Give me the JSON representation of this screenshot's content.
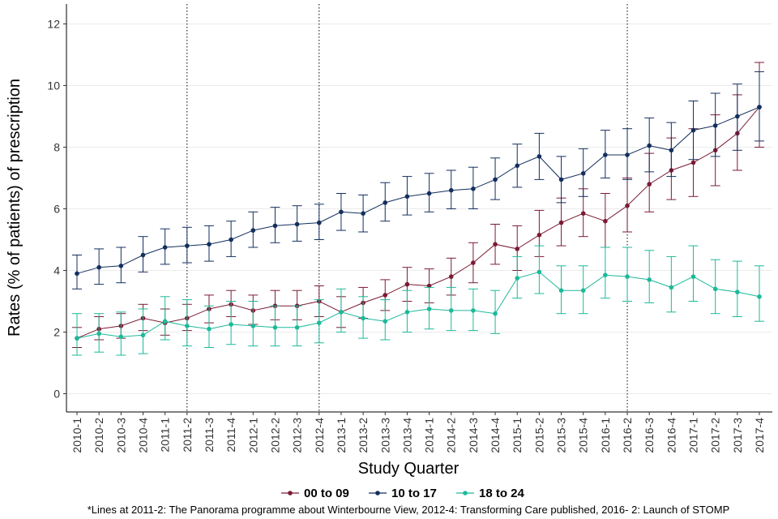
{
  "chart_data": {
    "type": "line",
    "xlabel": "Study Quarter",
    "ylabel": "Rates (% of patients) of prescription",
    "ylim": [
      -0.6,
      12.6
    ],
    "yticks": [
      0,
      2,
      4,
      6,
      8,
      10,
      12
    ],
    "grid": "horizontal",
    "legend_position": "bottom",
    "categories": [
      "2010-1",
      "2010-2",
      "2010-3",
      "2010-4",
      "2011-1",
      "2011-2",
      "2011-3",
      "2011-4",
      "2012-1",
      "2012-2",
      "2012-3",
      "2012-4",
      "2013-1",
      "2013-2",
      "2013-3",
      "2013-4",
      "2014-1",
      "2014-2",
      "2014-3",
      "2014-4",
      "2015-1",
      "2015-2",
      "2015-3",
      "2015-4",
      "2016-1",
      "2016-2",
      "2016-3",
      "2016-4",
      "2017-1",
      "2017-2",
      "2017-3",
      "2017-4"
    ],
    "vlines": [
      "2011-2",
      "2012-4",
      "2016-2"
    ],
    "series": [
      {
        "name": "00 to 09",
        "color": "#7b1b34",
        "values": [
          1.8,
          2.1,
          2.2,
          2.45,
          2.3,
          2.45,
          2.75,
          2.9,
          2.7,
          2.85,
          2.85,
          3.0,
          2.65,
          2.95,
          3.2,
          3.55,
          3.5,
          3.8,
          4.25,
          4.85,
          4.7,
          5.15,
          5.55,
          5.85,
          5.6,
          6.1,
          6.8,
          7.25,
          7.5,
          7.9,
          8.45,
          9.3
        ],
        "lower": [
          1.5,
          1.75,
          1.8,
          2.05,
          1.9,
          2.05,
          2.3,
          2.5,
          2.25,
          2.4,
          2.4,
          2.5,
          2.15,
          2.45,
          2.7,
          3.0,
          2.95,
          3.2,
          3.6,
          4.2,
          4.0,
          4.45,
          4.8,
          5.1,
          4.75,
          5.25,
          5.9,
          6.3,
          6.4,
          6.75,
          7.25,
          8.0
        ],
        "upper": [
          2.15,
          2.5,
          2.6,
          2.9,
          2.75,
          2.9,
          3.2,
          3.35,
          3.2,
          3.35,
          3.35,
          3.5,
          3.15,
          3.45,
          3.7,
          4.1,
          4.05,
          4.4,
          4.9,
          5.5,
          5.45,
          5.95,
          6.35,
          6.65,
          6.5,
          7.0,
          7.8,
          8.3,
          8.6,
          9.05,
          9.7,
          10.75
        ]
      },
      {
        "name": "10 to 17",
        "color": "#132f5e",
        "values": [
          3.9,
          4.1,
          4.15,
          4.5,
          4.75,
          4.8,
          4.85,
          5.0,
          5.3,
          5.45,
          5.5,
          5.55,
          5.9,
          5.85,
          6.2,
          6.4,
          6.5,
          6.6,
          6.65,
          6.95,
          7.4,
          7.7,
          6.95,
          7.15,
          7.75,
          7.75,
          8.05,
          7.9,
          8.55,
          8.7,
          9.0,
          9.3
        ],
        "lower": [
          3.4,
          3.55,
          3.6,
          3.95,
          4.2,
          4.25,
          4.3,
          4.45,
          4.75,
          4.9,
          4.95,
          5.0,
          5.3,
          5.25,
          5.6,
          5.8,
          5.9,
          6.0,
          6.0,
          6.3,
          6.7,
          6.95,
          6.2,
          6.4,
          7.0,
          6.95,
          7.2,
          7.05,
          7.6,
          7.7,
          7.9,
          8.2
        ],
        "upper": [
          4.5,
          4.7,
          4.75,
          5.1,
          5.35,
          5.4,
          5.45,
          5.6,
          5.9,
          6.05,
          6.1,
          6.15,
          6.5,
          6.45,
          6.85,
          7.05,
          7.15,
          7.25,
          7.35,
          7.65,
          8.1,
          8.45,
          7.7,
          7.95,
          8.55,
          8.6,
          8.95,
          8.8,
          9.5,
          9.75,
          10.05,
          10.45
        ]
      },
      {
        "name": "18 to 24",
        "color": "#1db99a",
        "values": [
          1.8,
          1.95,
          1.85,
          1.9,
          2.35,
          2.2,
          2.1,
          2.25,
          2.2,
          2.15,
          2.15,
          2.3,
          2.65,
          2.45,
          2.35,
          2.65,
          2.75,
          2.7,
          2.7,
          2.6,
          3.75,
          3.95,
          3.35,
          3.35,
          3.85,
          3.8,
          3.7,
          3.45,
          3.8,
          3.4,
          3.3,
          3.15
        ],
        "lower": [
          1.25,
          1.35,
          1.25,
          1.3,
          1.75,
          1.55,
          1.5,
          1.6,
          1.55,
          1.55,
          1.55,
          1.65,
          2.0,
          1.8,
          1.75,
          2.0,
          2.1,
          2.05,
          2.05,
          1.95,
          3.1,
          3.25,
          2.6,
          2.6,
          3.1,
          3.0,
          2.95,
          2.65,
          3.0,
          2.6,
          2.5,
          2.35
        ],
        "upper": [
          2.6,
          2.6,
          2.65,
          2.75,
          3.15,
          3.05,
          2.85,
          3.0,
          3.0,
          2.85,
          2.85,
          3.05,
          3.4,
          3.15,
          3.05,
          3.35,
          3.45,
          3.45,
          3.4,
          3.35,
          4.45,
          4.8,
          4.15,
          4.15,
          4.75,
          4.75,
          4.65,
          4.45,
          4.8,
          4.35,
          4.3,
          4.15
        ]
      }
    ]
  },
  "caption": "*Lines at 2011-2: The Panorama programme about Winterbourne View, 2012-4: Transforming Care published, 2016- 2: Launch of STOMP"
}
